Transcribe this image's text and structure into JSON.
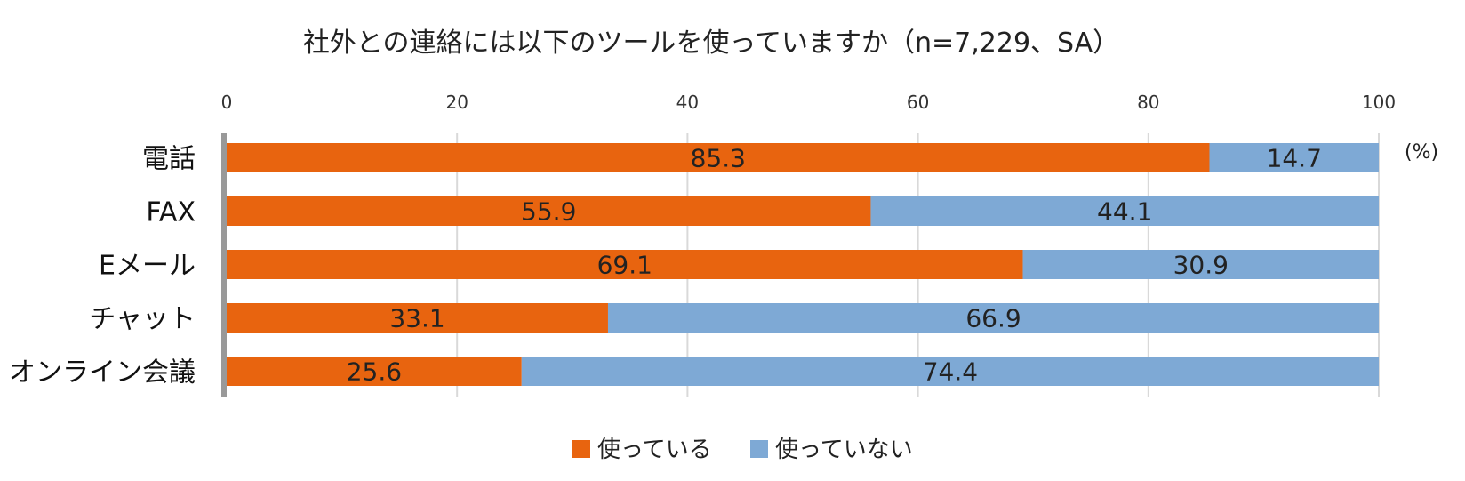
{
  "chart_data": {
    "type": "bar",
    "orientation": "horizontal",
    "stacked": true,
    "title": "社外との連絡には以下のツールを使っていますか（n=7,229、SA）",
    "unit_label": "(%)",
    "categories": [
      "電話",
      "FAX",
      "Eメール",
      "チャット",
      "オンライン会議"
    ],
    "series": [
      {
        "name": "使っている",
        "color": "#E8640F",
        "values": [
          85.3,
          55.9,
          69.1,
          33.1,
          25.6
        ]
      },
      {
        "name": "使っていない",
        "color": "#7EA9D5",
        "values": [
          14.7,
          44.1,
          30.9,
          66.9,
          74.4
        ]
      }
    ],
    "xlim": [
      0,
      100
    ],
    "xticks": [
      0,
      20,
      40,
      60,
      80,
      100
    ],
    "grid": true,
    "legend_position": "bottom-center"
  }
}
